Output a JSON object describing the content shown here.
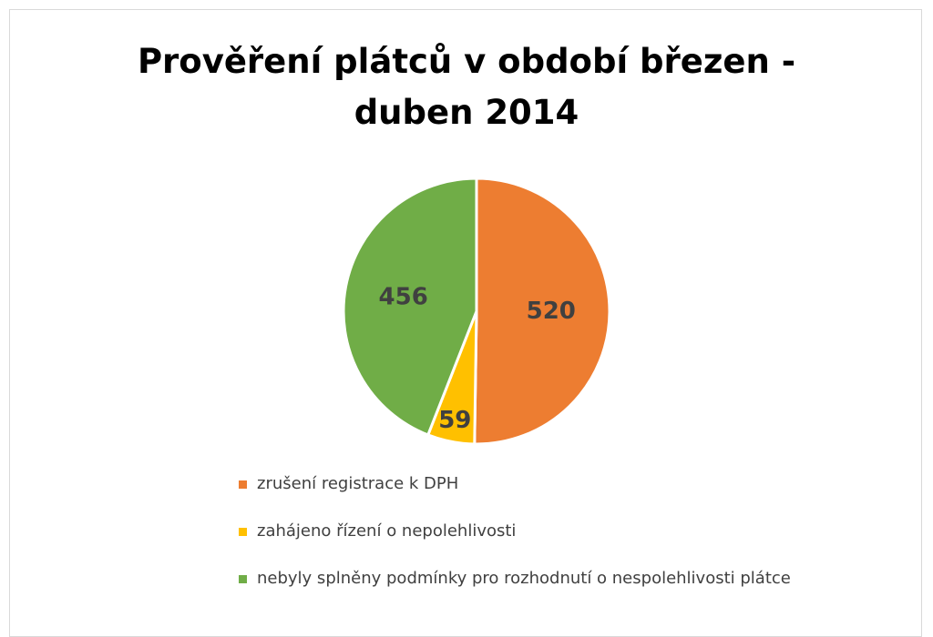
{
  "chart_data": {
    "type": "pie",
    "title": "Prověření plátců v období březen - duben 2014",
    "categories": [
      "zrušení registrace k DPH",
      "zahájeno řízení o nepolehlivosti",
      "nebyly splněny podmínky pro rozhodnutí o nespolehlivosti plátce"
    ],
    "values": [
      520,
      59,
      456
    ],
    "colors": [
      "#ed7d31",
      "#ffc000",
      "#70ad47"
    ],
    "legend": "bottom"
  }
}
